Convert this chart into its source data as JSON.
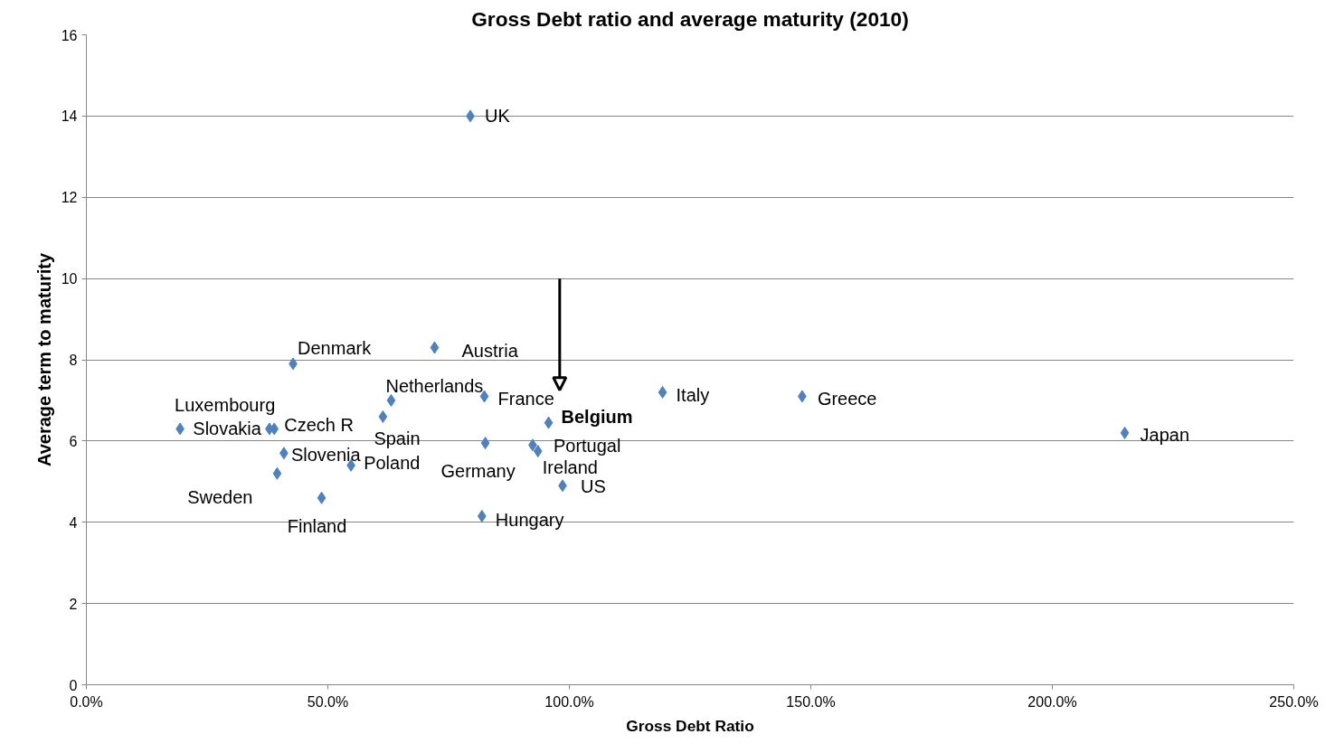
{
  "chart_data": {
    "type": "scatter",
    "title": "Gross Debt ratio and average maturity (2010)",
    "xlabel": "Gross Debt Ratio",
    "ylabel": "Average term to maturity",
    "xlim": [
      0,
      250
    ],
    "ylim": [
      0,
      16
    ],
    "xticks": [
      {
        "value": 0,
        "label": "0.0%"
      },
      {
        "value": 50,
        "label": "50.0%"
      },
      {
        "value": 100,
        "label": "100.0%"
      },
      {
        "value": 150,
        "label": "150.0%"
      },
      {
        "value": 200,
        "label": "200.0%"
      },
      {
        "value": 250,
        "label": "250.0%"
      }
    ],
    "yticks": [
      0,
      2,
      4,
      6,
      8,
      10,
      12,
      14,
      16
    ],
    "grid": "y",
    "marker": "diamond",
    "series": [
      {
        "name": "UK",
        "color": "#4f81bd",
        "x": [
          79.5
        ],
        "values": [
          14.0
        ]
      },
      {
        "name": "Denmark",
        "color": "#4f81bd",
        "x": [
          42.8
        ],
        "values": [
          7.9
        ]
      },
      {
        "name": "Austria",
        "color": "#4f81bd",
        "x": [
          72.1
        ],
        "values": [
          8.3
        ]
      },
      {
        "name": "Netherlands",
        "color": "#4f81bd",
        "x": [
          63.1
        ],
        "values": [
          7.0
        ]
      },
      {
        "name": "France",
        "color": "#4f81bd",
        "x": [
          82.4
        ],
        "values": [
          7.1
        ]
      },
      {
        "color": "#4f81bd",
        "x": [
          95.7
        ],
        "values": [
          6.45
        ]
      },
      {
        "name": "Italy",
        "color": "#4f81bd",
        "x": [
          119.3
        ],
        "values": [
          7.2
        ]
      },
      {
        "name": "Greece",
        "color": "#4f81bd",
        "x": [
          148.2
        ],
        "values": [
          7.1
        ]
      },
      {
        "name": "Japan",
        "color": "#4f81bd",
        "x": [
          215.0
        ],
        "values": [
          6.2
        ]
      },
      {
        "name": "Luxembourg",
        "color": "#4f81bd",
        "x": [
          19.4
        ],
        "values": [
          6.3
        ]
      },
      {
        "name": "Czech R",
        "color": "#4f81bd",
        "x": [
          38.9
        ],
        "values": [
          6.3
        ]
      },
      {
        "name": "Slovakia",
        "color": "#4f81bd",
        "x": [
          37.9
        ],
        "values": [
          6.3
        ]
      },
      {
        "name": "Slovenia",
        "color": "#4f81bd",
        "x": [
          40.9
        ],
        "values": [
          5.7
        ]
      },
      {
        "name": "Sweden",
        "color": "#4f81bd",
        "x": [
          39.5
        ],
        "values": [
          5.2
        ]
      },
      {
        "name": "Finland",
        "color": "#4f81bd",
        "x": [
          48.7
        ],
        "values": [
          4.6
        ]
      },
      {
        "name": "Spain",
        "color": "#4f81bd",
        "x": [
          61.4
        ],
        "values": [
          6.6
        ]
      },
      {
        "name": "Poland",
        "color": "#4f81bd",
        "x": [
          54.8
        ],
        "values": [
          5.4
        ]
      },
      {
        "name": "Germany",
        "color": "#4f81bd",
        "x": [
          82.6
        ],
        "values": [
          5.95
        ]
      },
      {
        "name": "Portugal",
        "color": "#4f81bd",
        "x": [
          92.4
        ],
        "values": [
          5.9
        ]
      },
      {
        "name": "Ireland",
        "color": "#4f81bd",
        "x": [
          93.5
        ],
        "values": [
          5.75
        ]
      },
      {
        "name": "US",
        "color": "#4f81bd",
        "x": [
          98.6
        ],
        "values": [
          4.9
        ]
      },
      {
        "name": "Hungary",
        "color": "#4f81bd",
        "x": [
          81.9
        ],
        "values": [
          4.15
        ]
      }
    ],
    "annotations": [
      {
        "text": "Belgium",
        "x": 95.7,
        "y": 6.45
      }
    ]
  }
}
